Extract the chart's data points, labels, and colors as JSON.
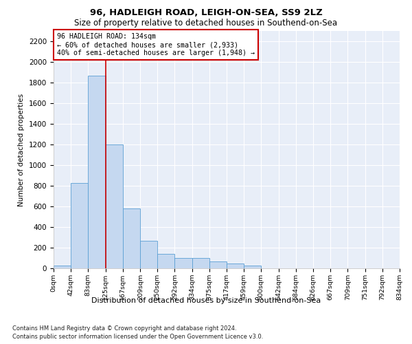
{
  "title1": "96, HADLEIGH ROAD, LEIGH-ON-SEA, SS9 2LZ",
  "title2": "Size of property relative to detached houses in Southend-on-Sea",
  "xlabel": "Distribution of detached houses by size in Southend-on-Sea",
  "ylabel": "Number of detached properties",
  "footnote1": "Contains HM Land Registry data © Crown copyright and database right 2024.",
  "footnote2": "Contains public sector information licensed under the Open Government Licence v3.0.",
  "annotation_title": "96 HADLEIGH ROAD: 134sqm",
  "annotation_line1": "← 60% of detached houses are smaller (2,933)",
  "annotation_line2": "40% of semi-detached houses are larger (1,948) →",
  "bar_color": "#c5d8f0",
  "bar_edge_color": "#5a9fd4",
  "vline_color": "#cc0000",
  "vline_x": 125,
  "bin_edges": [
    0,
    42,
    83,
    125,
    167,
    209,
    250,
    292,
    334,
    375,
    417,
    459,
    500,
    542,
    584,
    626,
    667,
    709,
    751,
    792,
    834
  ],
  "bar_heights": [
    25,
    830,
    1870,
    1200,
    580,
    265,
    140,
    100,
    100,
    70,
    50,
    30,
    0,
    0,
    0,
    0,
    0,
    0,
    0,
    0
  ],
  "ylim": [
    0,
    2300
  ],
  "yticks": [
    0,
    200,
    400,
    600,
    800,
    1000,
    1200,
    1400,
    1600,
    1800,
    2000,
    2200
  ],
  "plot_bg_color": "#e8eef8",
  "annotation_box_color": "#ffffff",
  "annotation_box_edge": "#cc0000",
  "tick_labels": [
    "0sqm",
    "42sqm",
    "83sqm",
    "125sqm",
    "167sqm",
    "209sqm",
    "250sqm",
    "292sqm",
    "334sqm",
    "375sqm",
    "417sqm",
    "459sqm",
    "500sqm",
    "542sqm",
    "584sqm",
    "626sqm",
    "667sqm",
    "709sqm",
    "751sqm",
    "792sqm",
    "834sqm"
  ]
}
